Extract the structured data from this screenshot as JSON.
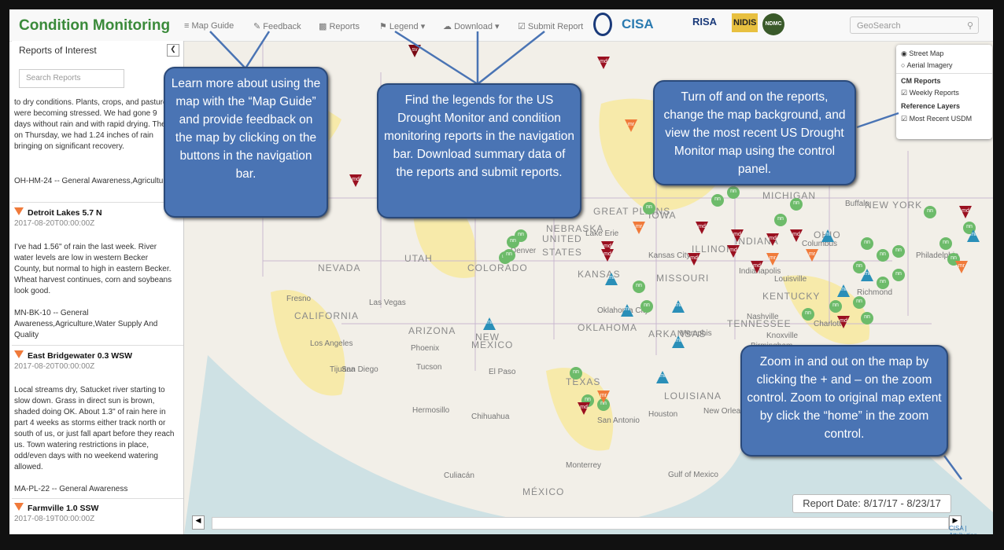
{
  "navbar": {
    "brand": "Condition Monitoring",
    "links": [
      "Map Guide",
      "Feedback",
      "Reports",
      "Legend",
      "Download",
      "Submit Report"
    ],
    "logos": [
      "CISA",
      "RISA",
      "NIDIS",
      "NDMC"
    ],
    "search_placeholder": "GeoSearch"
  },
  "sidebar": {
    "title": "Reports of Interest",
    "search_placeholder": "Search Reports",
    "intro_text": "to dry conditions. Plants, crops, and pastures were becoming stressed. We had gone 9 days without rain and with rapid drying. Then on Thursday, we had 1.24 inches of rain bringing on significant recovery.",
    "intro_code": "OH-HM-24 -- General Awareness,Agriculture",
    "reports": [
      {
        "name": "Detroit Lakes 5.7 N",
        "date": "2017-08-20T00:00:00Z",
        "text": "I've had 1.56\" of rain the last week. River water levels are low in western Becker County, but normal to high in eastern Becker. Wheat harvest continues, corn and soybeans look good.",
        "code": "MN-BK-10 -- General Awareness,Agriculture,Water Supply And Quality"
      },
      {
        "name": "East Bridgewater 0.3 WSW",
        "date": "2017-08-20T00:00:00Z",
        "text": "Local streams dry, Satucket river starting to slow down. Grass in direct sun is brown, shaded doing OK. About 1.3\" of rain here in part 4 weeks as storms either track north or south of us, or just fall apart before they reach us. Town watering restrictions in place, odd/even days with no weekend watering allowed.",
        "code": "MA-PL-22 -- General Awareness"
      },
      {
        "name": "Farmville 1.0 SSW",
        "date": "2017-08-19T00:00:00Z"
      }
    ]
  },
  "layer_control": {
    "basemaps": [
      "Street Map",
      "Aerial Imagery"
    ],
    "cm_heading": "CM Reports",
    "cm_layers": [
      "Weekly Reports"
    ],
    "ref_heading": "Reference Layers",
    "ref_layers": [
      "Most Recent USDM"
    ]
  },
  "callouts": [
    "Learn more about using the map with the “Map Guide” and provide feedback on the map by clicking on the buttons in the navigation bar.",
    "Find the legends for the US Drought Monitor and condition monitoring reports in the navigation bar. Download summary data of the reports  and submit reports.",
    "Turn off and on the reports, change the map background, and view the most recent US Drought Monitor map using the control panel.",
    "Zoom in and out on the map by clicking the + and – on the zoom control. Zoom to original map extent by click the “home” in the zoom control."
  ],
  "map": {
    "labels": [
      "UNITED",
      "STATES",
      "NEVADA",
      "UTAH",
      "COLORADO",
      "KANSAS",
      "NEBRASKA",
      "IOWA",
      "MISSOURI",
      "ILLINOIS",
      "INDIANA",
      "OHIO",
      "KENTUCKY",
      "TENNESSEE",
      "ARKANSAS",
      "OKLAHOMA",
      "TEXAS",
      "NEW",
      "MEXICO",
      "ARIZONA",
      "CALIFORNIA",
      "LOUISIANA",
      "MICHIGAN",
      "NEW YORK",
      "MÉXICO",
      "GREAT PLAINS",
      "Denver",
      "Phoenix",
      "Tucson",
      "El Paso",
      "Houston",
      "San Antonio",
      "Oklahoma City",
      "Kansas City",
      "Memphis",
      "Nashville",
      "Atlanta",
      "Birmingham",
      "Louisville",
      "Indianapolis",
      "Columbus",
      "Philadelphia",
      "Richmond",
      "Buffalo",
      "Las Vegas",
      "Los Angeles",
      "San Diego",
      "Fresno",
      "Tijuana",
      "Hermosillo",
      "Chihuahua",
      "Monterrey",
      "Culiacán",
      "New Orleans",
      "Gulf of Mexico",
      "Knoxville",
      "Charlotte",
      "Lake Erie"
    ],
    "markers": [
      "sv",
      "md",
      "md",
      "mr",
      "md",
      "nn",
      "nn",
      "nn",
      "ml",
      "nn",
      "nn",
      "nn",
      "md",
      "md",
      "mr",
      "md",
      "md",
      "ml",
      "nn",
      "nn",
      "ml",
      "nn",
      "md",
      "md",
      "md",
      "mr",
      "nn",
      "nn",
      "ml",
      "ml",
      "nn",
      "nn",
      "nn",
      "md",
      "md",
      "mr",
      "ml",
      "nn",
      "nn",
      "nn",
      "ml",
      "md",
      "nn",
      "nn",
      "nn",
      "mr",
      "nn",
      "ml",
      "nn",
      "nn",
      "md",
      "nn",
      "nn",
      "ml",
      "nn",
      "nn",
      "nn",
      "md",
      "mr",
      "ml"
    ]
  },
  "report_date": "Report Date: 8/17/17 - 8/23/17",
  "zoom": [
    "+",
    "-"
  ],
  "attribution": "CISA | Attribution"
}
